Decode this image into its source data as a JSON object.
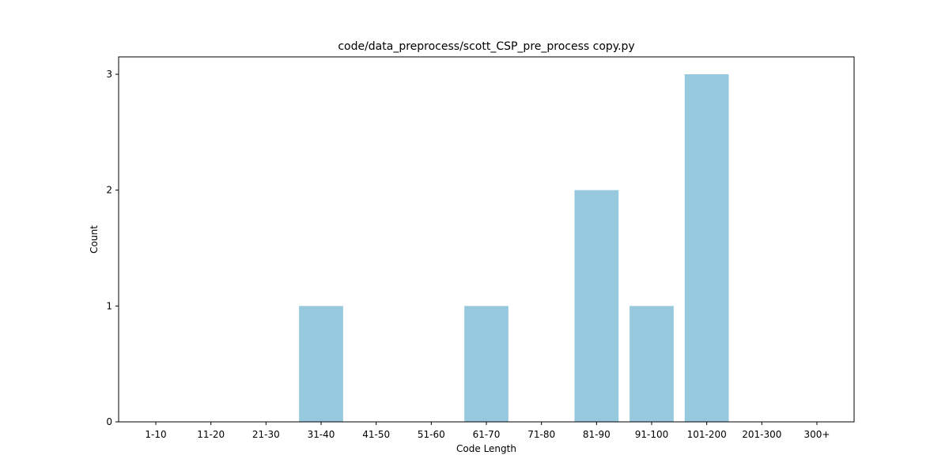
{
  "chart_data": {
    "type": "bar",
    "title": "code/data_preprocess/scott_CSP_pre_process copy.py",
    "xlabel": "Code Length",
    "ylabel": "Count",
    "categories": [
      "1-10",
      "11-20",
      "21-30",
      "31-40",
      "41-50",
      "51-60",
      "61-70",
      "71-80",
      "81-90",
      "91-100",
      "101-200",
      "201-300",
      "300+"
    ],
    "values": [
      0,
      0,
      0,
      1,
      0,
      0,
      1,
      0,
      2,
      1,
      3,
      0,
      0
    ],
    "yticks": [
      0,
      1,
      2,
      3
    ],
    "ylim": [
      0,
      3.15
    ],
    "grid": false,
    "bar_color": "#96c9dd"
  }
}
